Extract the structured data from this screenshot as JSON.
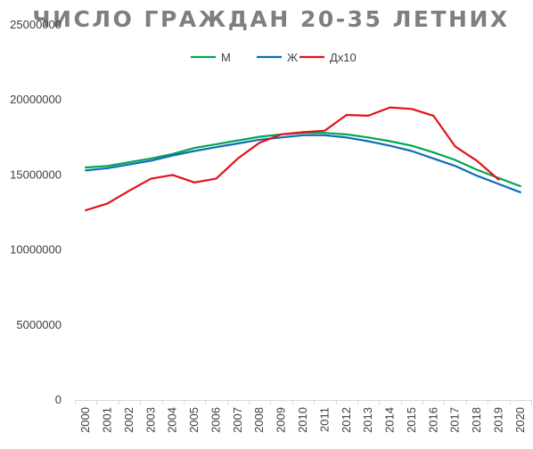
{
  "chart_data": {
    "type": "line",
    "title": "ЧИСЛО ГРАЖДАН 20-35 ЛЕТНИХ",
    "xlabel": "",
    "ylabel": "",
    "categories": [
      "2000",
      "2001",
      "2002",
      "2003",
      "2004",
      "2005",
      "2006",
      "2007",
      "2008",
      "2009",
      "2010",
      "2011",
      "2012",
      "2013",
      "2014",
      "2015",
      "2016",
      "2017",
      "2018",
      "2019",
      "2020"
    ],
    "ylim": [
      0,
      25000000
    ],
    "yticks": [
      "0",
      "5000000",
      "10000000",
      "15000000",
      "20000000",
      "25000000"
    ],
    "grid": false,
    "legend_position": "top",
    "series": [
      {
        "name": "М",
        "color": "#00a651",
        "values": [
          15500000,
          15600000,
          15850000,
          16100000,
          16400000,
          16800000,
          17050000,
          17300000,
          17550000,
          17700000,
          17800000,
          17800000,
          17700000,
          17500000,
          17250000,
          16950000,
          16500000,
          16000000,
          15350000,
          14800000,
          14250000
        ]
      },
      {
        "name": "Ж",
        "color": "#0f6db5",
        "values": [
          15300000,
          15450000,
          15700000,
          15950000,
          16300000,
          16600000,
          16850000,
          17100000,
          17350000,
          17500000,
          17650000,
          17650000,
          17500000,
          17250000,
          16950000,
          16600000,
          16100000,
          15600000,
          14950000,
          14400000,
          13850000
        ]
      },
      {
        "name": "Дх10",
        "color": "#e3121b",
        "values": [
          12650000,
          13100000,
          13950000,
          14750000,
          15000000,
          14500000,
          14750000,
          16100000,
          17150000,
          17700000,
          17850000,
          17950000,
          19000000,
          18950000,
          19500000,
          19400000,
          18950000,
          16900000,
          15950000,
          14700000,
          null
        ]
      }
    ]
  }
}
